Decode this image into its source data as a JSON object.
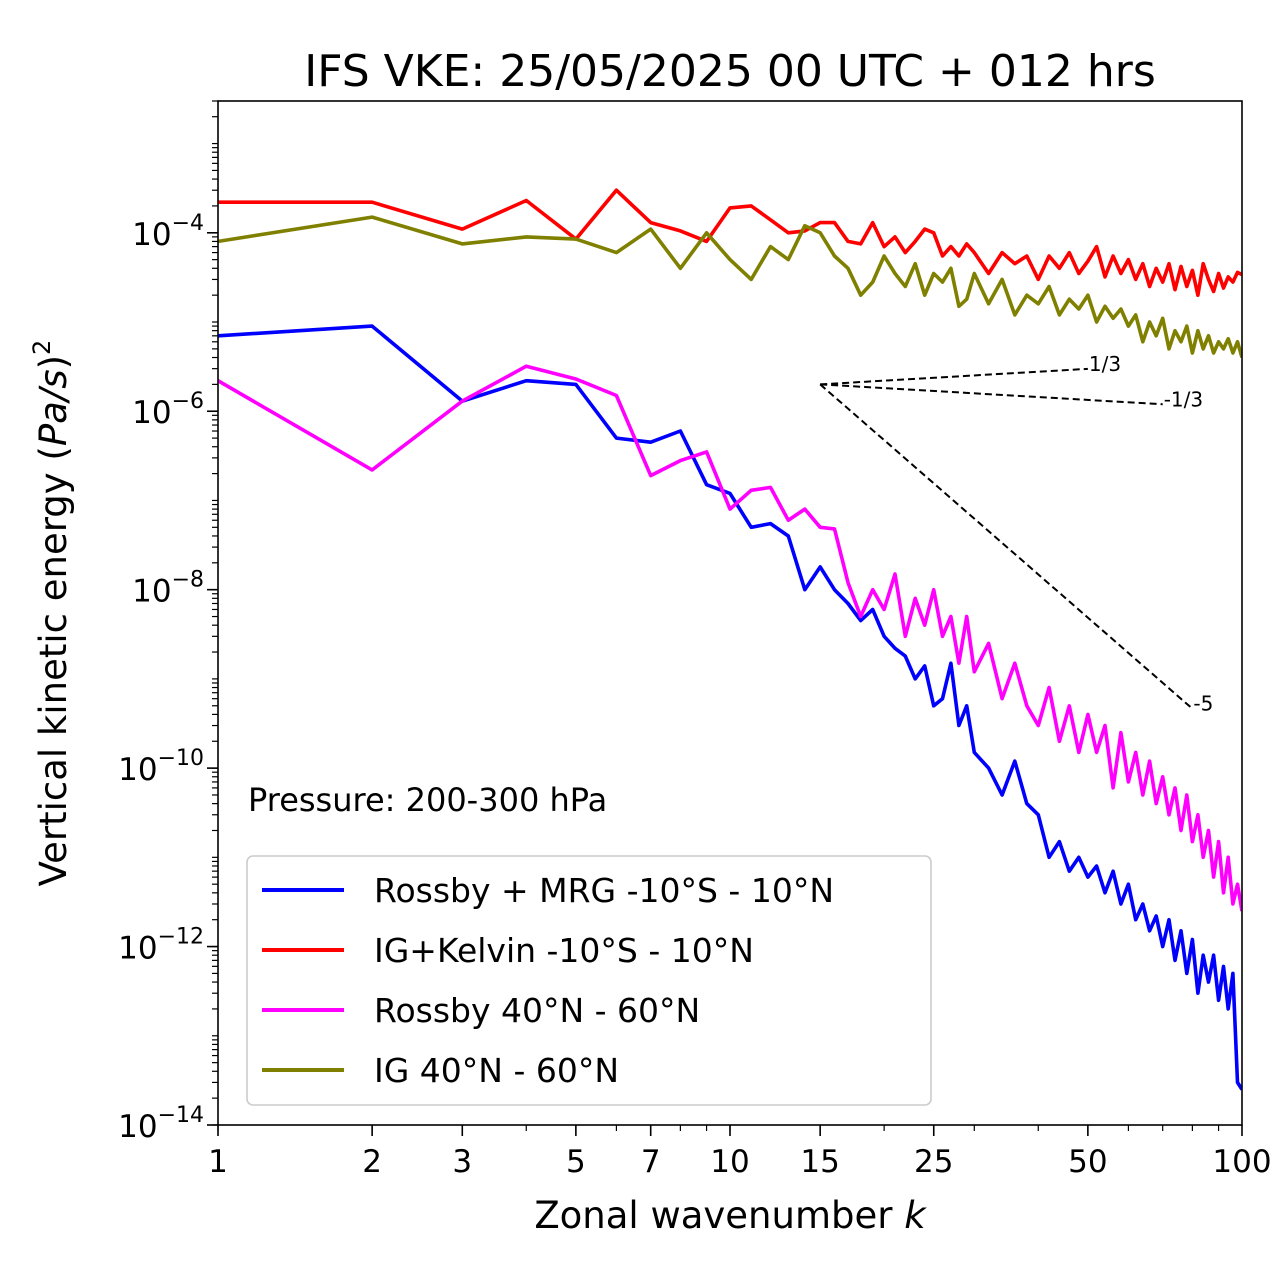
{
  "chart_data": {
    "type": "line",
    "title": "IFS VKE: 25/05/2025 00 UTC + 012 hrs",
    "xlabel": "Zonal wavenumber",
    "xlabel_italic": "k",
    "ylabel_prefix": "Vertical kinetic energy (",
    "ylabel_unit": "Pa/s",
    "ylabel_suffix": ")",
    "ylabel_exp": "2",
    "xscale": "log",
    "yscale": "log",
    "xlim": [
      1,
      100
    ],
    "ylim": [
      1e-14,
      0.003
    ],
    "x_ticks": [
      1,
      2,
      3,
      5,
      7,
      10,
      15,
      25,
      50,
      100
    ],
    "x_tick_labels": [
      "1",
      "2",
      "3",
      "5",
      "7",
      "10",
      "15",
      "25",
      "50",
      "100"
    ],
    "y_ticks": [
      1e-14,
      1e-12,
      1e-10,
      1e-08,
      1e-06,
      0.0001
    ],
    "y_tick_base": "10",
    "y_tick_exponents": [
      "−14",
      "−12",
      "−10",
      "−8",
      "−6",
      "−4"
    ],
    "annotation": "Pressure: 200-300 hPa",
    "legend_position": "lower left",
    "series": [
      {
        "name": "Rossby + MRG -10°S - 10°N",
        "color": "#0000ff",
        "x": [
          1,
          2,
          3,
          4,
          5,
          6,
          7,
          8,
          9,
          10,
          11,
          12,
          13,
          14,
          15,
          16,
          17,
          18,
          19,
          20,
          21,
          22,
          23,
          24,
          25,
          26,
          27,
          28,
          29,
          30,
          32,
          34,
          36,
          38,
          40,
          42,
          44,
          46,
          48,
          50,
          52,
          54,
          56,
          58,
          60,
          62,
          64,
          66,
          68,
          70,
          72,
          74,
          76,
          78,
          80,
          82,
          84,
          86,
          88,
          90,
          92,
          94,
          96,
          98,
          100
        ],
        "y": [
          7e-06,
          9e-06,
          1.3e-06,
          2.2e-06,
          2e-06,
          5e-07,
          4.5e-07,
          6e-07,
          1.5e-07,
          1.2e-07,
          5e-08,
          5.5e-08,
          4e-08,
          1e-08,
          1.8e-08,
          1e-08,
          7e-09,
          4.5e-09,
          6e-09,
          3e-09,
          2.2e-09,
          1.8e-09,
          1e-09,
          1.4e-09,
          5e-10,
          6e-10,
          1.5e-09,
          3e-10,
          5e-10,
          1.5e-10,
          1e-10,
          5e-11,
          1.2e-10,
          4e-11,
          3e-11,
          1e-11,
          1.5e-11,
          7e-12,
          1e-11,
          6e-12,
          8e-12,
          4e-12,
          7e-12,
          3e-12,
          5e-12,
          2e-12,
          3e-12,
          1.5e-12,
          2.2e-12,
          1e-12,
          2e-12,
          7e-13,
          1.5e-12,
          5e-13,
          1.2e-12,
          3e-13,
          8e-13,
          4e-13,
          8e-13,
          2.5e-13,
          6e-13,
          2e-13,
          5e-13,
          3e-14,
          2.5e-14
        ]
      },
      {
        "name": "IG+Kelvin -10°S - 10°N",
        "color": "#ff0000",
        "x": [
          1,
          2,
          3,
          4,
          5,
          6,
          7,
          8,
          9,
          10,
          11,
          12,
          13,
          14,
          15,
          16,
          17,
          18,
          19,
          20,
          21,
          22,
          23,
          24,
          25,
          26,
          27,
          28,
          29,
          30,
          32,
          34,
          36,
          38,
          40,
          42,
          44,
          46,
          48,
          50,
          52,
          54,
          56,
          58,
          60,
          62,
          64,
          66,
          68,
          70,
          72,
          74,
          76,
          78,
          80,
          82,
          84,
          86,
          88,
          90,
          92,
          94,
          96,
          98,
          100
        ],
        "y": [
          0.00022,
          0.00022,
          0.00011,
          0.00023,
          8.5e-05,
          0.0003,
          0.00013,
          0.000105,
          8e-05,
          0.00019,
          0.0002,
          0.00014,
          0.0001,
          0.000105,
          0.00013,
          0.00013,
          8e-05,
          7.5e-05,
          0.00013,
          7e-05,
          9e-05,
          6e-05,
          8e-05,
          0.00011,
          0.0001,
          5.5e-05,
          7e-05,
          5.5e-05,
          7.5e-05,
          6e-05,
          3.5e-05,
          6e-05,
          4.5e-05,
          5.5e-05,
          3e-05,
          5.5e-05,
          4e-05,
          6e-05,
          3.5e-05,
          4.8e-05,
          7e-05,
          3.2e-05,
          5.5e-05,
          3.5e-05,
          5e-05,
          3e-05,
          4.5e-05,
          2.5e-05,
          4e-05,
          2.8e-05,
          4.5e-05,
          2.3e-05,
          4.2e-05,
          2.5e-05,
          3.8e-05,
          2e-05,
          4.5e-05,
          3e-05,
          2.2e-05,
          3.5e-05,
          2.4e-05,
          3.2e-05,
          2.8e-05,
          3.6e-05,
          3.4e-05
        ]
      },
      {
        "name": "Rossby 40°N - 60°N",
        "color": "#ff00ff",
        "x": [
          1,
          2,
          3,
          4,
          5,
          6,
          7,
          8,
          9,
          10,
          11,
          12,
          13,
          14,
          15,
          16,
          17,
          18,
          19,
          20,
          21,
          22,
          23,
          24,
          25,
          26,
          27,
          28,
          29,
          30,
          32,
          34,
          36,
          38,
          40,
          42,
          44,
          46,
          48,
          50,
          52,
          54,
          56,
          58,
          60,
          62,
          64,
          66,
          68,
          70,
          72,
          74,
          76,
          78,
          80,
          82,
          84,
          86,
          88,
          90,
          92,
          94,
          96,
          98,
          100
        ],
        "y": [
          2.2e-06,
          2.2e-07,
          1.3e-06,
          3.2e-06,
          2.3e-06,
          1.5e-06,
          1.9e-07,
          2.8e-07,
          3.5e-07,
          8e-08,
          1.3e-07,
          1.4e-07,
          6e-08,
          8e-08,
          5e-08,
          4.8e-08,
          1.2e-08,
          5e-09,
          1e-08,
          6e-09,
          1.5e-08,
          3e-09,
          8e-09,
          4e-09,
          1e-08,
          3e-09,
          5e-09,
          1.5e-09,
          5e-09,
          1.2e-09,
          2.5e-09,
          6e-10,
          1.5e-09,
          5e-10,
          3e-10,
          8e-10,
          2e-10,
          5e-10,
          1.5e-10,
          4e-10,
          1.5e-10,
          3e-10,
          6e-11,
          2.5e-10,
          7e-11,
          1.5e-10,
          5e-11,
          1.2e-10,
          4e-11,
          8e-11,
          3e-11,
          6e-11,
          2e-11,
          5e-11,
          1.5e-11,
          3e-11,
          1e-11,
          2e-11,
          6e-12,
          1.5e-11,
          4e-12,
          1e-11,
          3e-12,
          5e-12,
          2.5e-12
        ]
      },
      {
        "name": "IG 40°N - 60°N",
        "color": "#808000",
        "x": [
          1,
          2,
          3,
          4,
          5,
          6,
          7,
          8,
          9,
          10,
          11,
          12,
          13,
          14,
          15,
          16,
          17,
          18,
          19,
          20,
          21,
          22,
          23,
          24,
          25,
          26,
          27,
          28,
          29,
          30,
          32,
          34,
          36,
          38,
          40,
          42,
          44,
          46,
          48,
          50,
          52,
          54,
          56,
          58,
          60,
          62,
          64,
          66,
          68,
          70,
          72,
          74,
          76,
          78,
          80,
          82,
          84,
          86,
          88,
          90,
          92,
          94,
          96,
          98,
          100
        ],
        "y": [
          8e-05,
          0.00015,
          7.5e-05,
          9e-05,
          8.5e-05,
          6e-05,
          0.00011,
          4e-05,
          0.0001,
          5e-05,
          3e-05,
          7e-05,
          5e-05,
          0.00012,
          0.0001,
          5.5e-05,
          4e-05,
          2e-05,
          2.8e-05,
          5.5e-05,
          3.5e-05,
          2.5e-05,
          4.5e-05,
          2e-05,
          3.5e-05,
          2.8e-05,
          4e-05,
          1.5e-05,
          1.8e-05,
          3.5e-05,
          1.6e-05,
          3e-05,
          1.2e-05,
          2e-05,
          1.6e-05,
          2.5e-05,
          1.2e-05,
          1.8e-05,
          1.4e-05,
          2e-05,
          1e-05,
          1.5e-05,
          1.1e-05,
          1.4e-05,
          9e-06,
          1.2e-05,
          6e-06,
          1e-05,
          7e-06,
          1.1e-05,
          5e-06,
          8e-06,
          6e-06,
          9e-06,
          4.5e-06,
          8e-06,
          5e-06,
          7e-06,
          4.5e-06,
          6e-06,
          5e-06,
          6.5e-06,
          4.5e-06,
          6e-06,
          4e-06
        ]
      }
    ],
    "reference_slopes": [
      {
        "label": "1/3",
        "slope": 0.3333,
        "x_start": 15,
        "x_end": 50,
        "y_start": 2e-06
      },
      {
        "label": "-1/3",
        "slope": -0.3333,
        "x_start": 15,
        "x_end": 70,
        "y_start": 2e-06
      },
      {
        "label": "-5",
        "slope": -5,
        "x_start": 15,
        "x_end": 80,
        "y_start": 2e-06
      }
    ]
  }
}
